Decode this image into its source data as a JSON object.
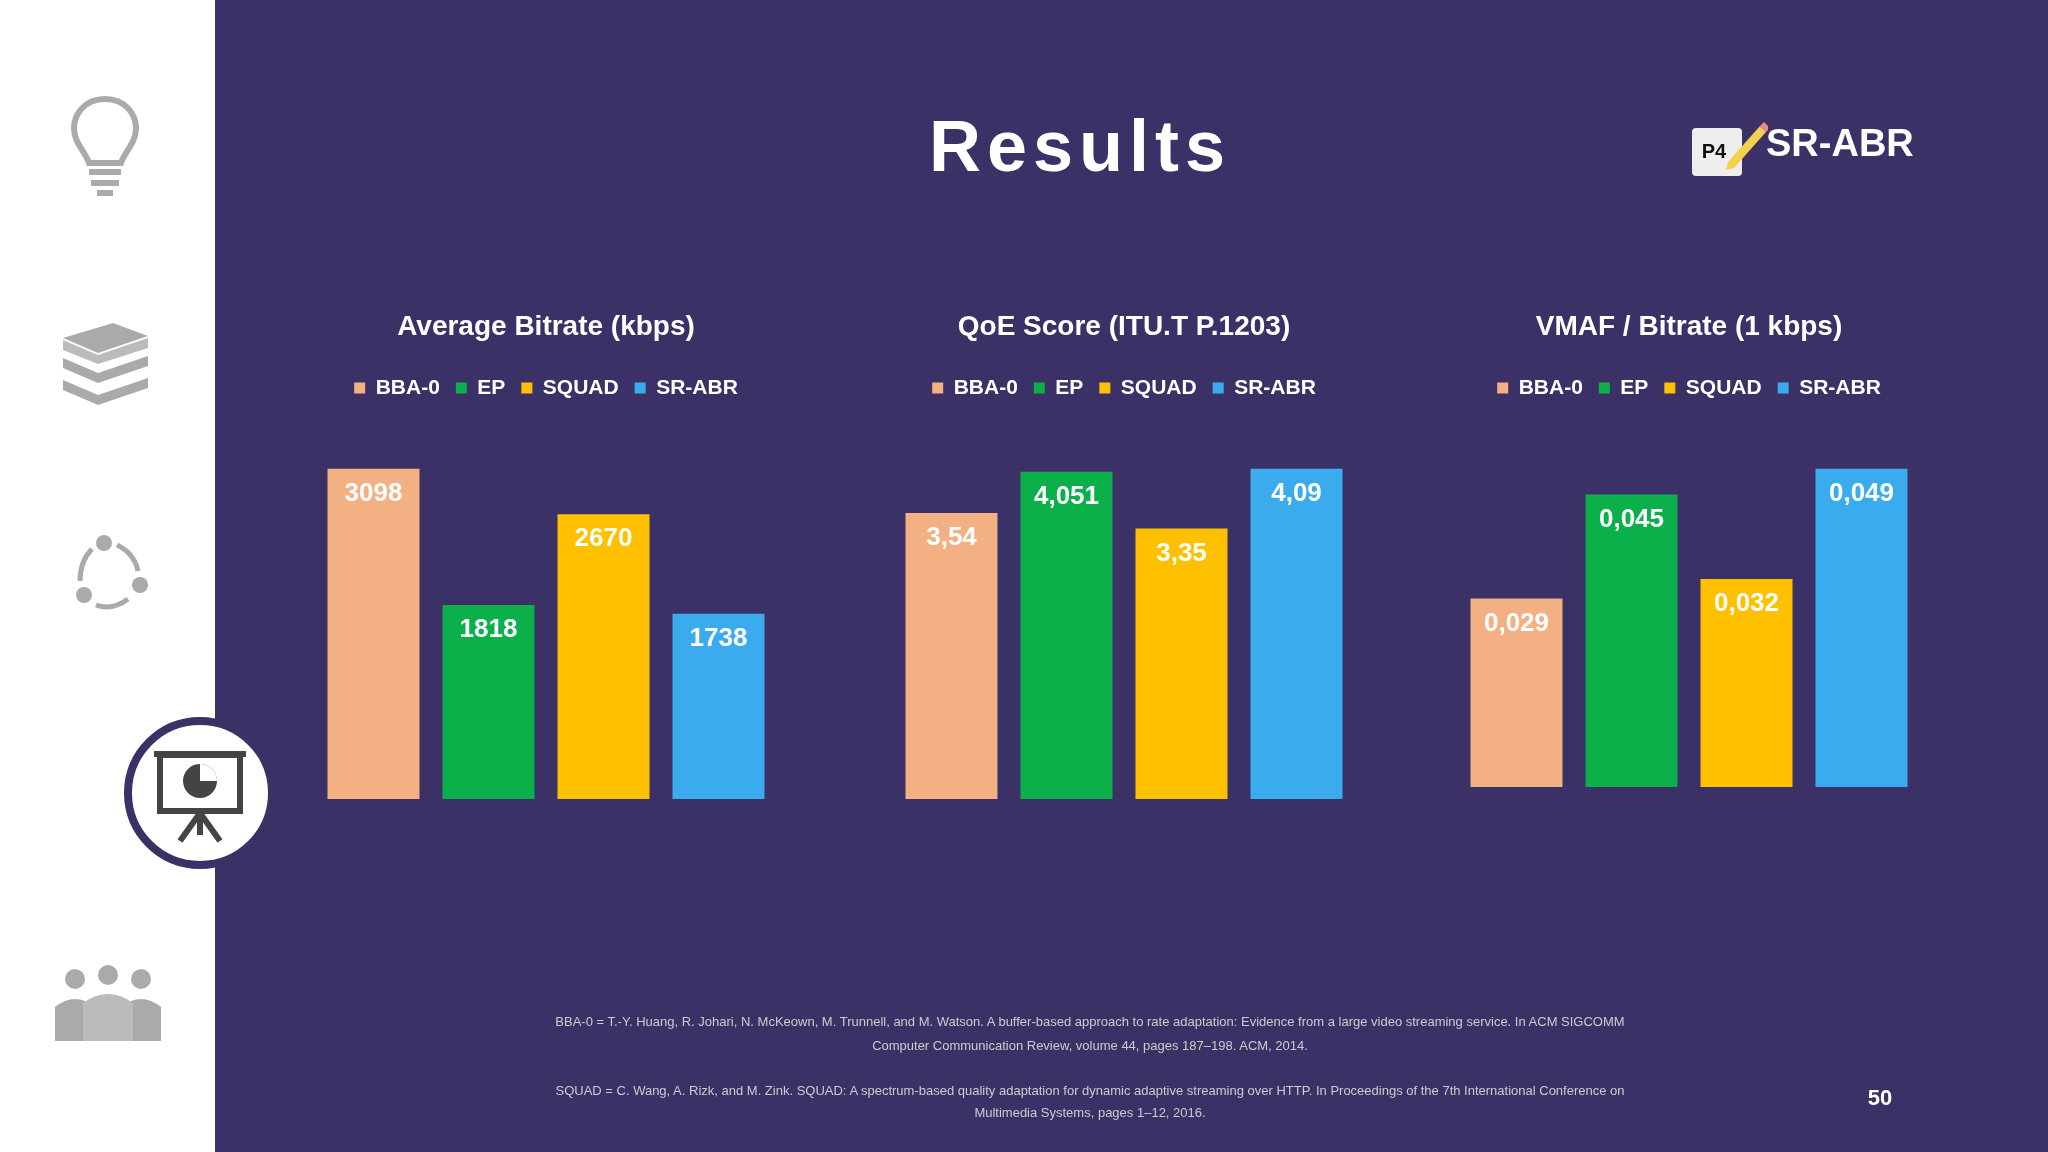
{
  "chart_data": [
    {
      "type": "bar",
      "title": "Average Bitrate (kbps)",
      "categories": [
        null
      ],
      "legend": "top",
      "grid": false,
      "series": [
        {
          "name": "BBA-0",
          "color": "#f2b083",
          "values": [
            3098
          ],
          "value_labels": [
            "3098"
          ]
        },
        {
          "name": "EP",
          "color": "#0bb04b",
          "values": [
            1818
          ],
          "value_labels": [
            "1818"
          ]
        },
        {
          "name": "SQUAD",
          "color": "#ffc000",
          "values": [
            2670
          ],
          "value_labels": [
            "2670"
          ]
        },
        {
          "name": "SR-ABR",
          "color": "#3aabec",
          "values": [
            1738
          ],
          "value_labels": [
            "1738"
          ]
        }
      ],
      "annotations": [
        "Results",
        "P4",
        "SR-ABR",
        "BBA-0 = T.-Y. Huang, R. Johari, N. McKeown, M. Trunnell, and M. Watson. A buffer-based approach to rate adaptation: Evidence from a large video streaming service. In ACM SIGCOMM Computer Communication Review, volume 44, pages 187–198. ACM, 2014.",
        "SQUAD = C. Wang, A. Rizk, and M. Zink. SQUAD: A spectrum-based quality adaptation for dynamic adaptive streaming over HTTP. In Proceedings of the 7th International Conference on Multimedia Systems, pages 1–12, 2016.",
        "50"
      ]
    },
    {
      "type": "bar",
      "title": "QoE Score (ITU.T P.1203)",
      "categories": [
        null
      ],
      "legend": "top",
      "grid": false,
      "series": [
        {
          "name": "BBA-0",
          "color": "#f2b083",
          "values": [
            3.54
          ],
          "value_labels": [
            "3,54"
          ]
        },
        {
          "name": "EP",
          "color": "#0bb04b",
          "values": [
            4.051
          ],
          "value_labels": [
            "4,051"
          ]
        },
        {
          "name": "SQUAD",
          "color": "#ffc000",
          "values": [
            3.35
          ],
          "value_labels": [
            "3,35"
          ]
        },
        {
          "name": "SR-ABR",
          "color": "#3aabec",
          "values": [
            4.09
          ],
          "value_labels": [
            "4,09"
          ]
        }
      ]
    },
    {
      "type": "bar",
      "title": "VMAF / Bitrate (1 kbps)",
      "categories": [
        null
      ],
      "legend": "top",
      "grid": false,
      "series": [
        {
          "name": "BBA-0",
          "color": "#f2b083",
          "values": [
            0.029
          ],
          "value_labels": [
            "0,029"
          ]
        },
        {
          "name": "EP",
          "color": "#0bb04b",
          "values": [
            0.045
          ],
          "value_labels": [
            "0,045"
          ]
        },
        {
          "name": "SQUAD",
          "color": "#ffc000",
          "values": [
            0.032
          ],
          "value_labels": [
            "0,032"
          ]
        },
        {
          "name": "SR-ABR",
          "color": "#3aabec",
          "values": [
            0.049
          ],
          "value_labels": [
            "0,049"
          ]
        }
      ]
    }
  ]
}
